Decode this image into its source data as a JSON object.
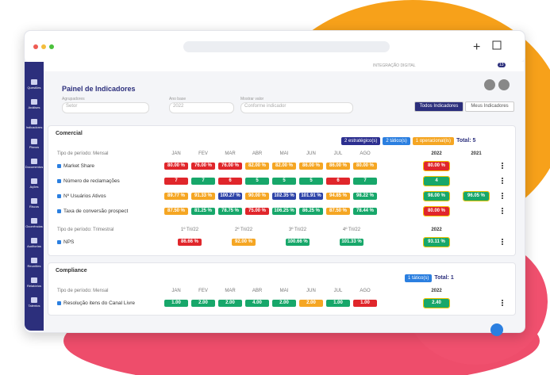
{
  "topbar": {
    "org": "INTEGRAÇÃO DIGITAL",
    "notifications": "13"
  },
  "sidebar": [
    "Questões",
    "Análises",
    "Indicadores",
    "Planos",
    "Documentos",
    "Ações",
    "Riscos",
    "Ocorrências",
    "Auditorias",
    "Reuniões",
    "Relatórios",
    "Talentos"
  ],
  "header": {
    "title": "Painel de Indicadores"
  },
  "filters": [
    {
      "label": "Agrupadores",
      "value": "Setor"
    },
    {
      "label": "Ano base",
      "value": "2022"
    },
    {
      "label": "Mostrar valor",
      "value": "Conforme indicador"
    }
  ],
  "tabs": [
    "Todos Indicadores",
    "Meus Indicadores"
  ],
  "sections": [
    {
      "title": "Comercial",
      "badges": [
        {
          "text": "2 estratégico(s)",
          "color": "#2c2f8f"
        },
        {
          "text": "2 tático(s)",
          "color": "#2b7fe0"
        },
        {
          "text": "1 operacional(is)",
          "color": "#f5a623"
        }
      ],
      "total": "Total: 5",
      "groups": [
        {
          "period": "Tipo de período: Mensal",
          "columns": [
            "JAN",
            "FEV",
            "MAR",
            "ABR",
            "MAI",
            "JUN",
            "JUL",
            "AGO"
          ],
          "year_columns": [
            "2022",
            "2021"
          ],
          "rows": [
            {
              "name": "Market Share",
              "cells": [
                "80.00 %",
                "76.00 %",
                "76.00 %",
                "82.00 %",
                "82.00 %",
                "86.00 %",
                "86.00 %",
                "80.00 %"
              ],
              "colors": [
                "#e0262b",
                "#e0262b",
                "#e0262b",
                "#f5a623",
                "#f5a623",
                "#f5a623",
                "#f5a623",
                "#f5a623"
              ],
              "years": [
                "80.00 %"
              ],
              "year_colors": [
                "#e0262b"
              ]
            },
            {
              "name": "Número de reclamações",
              "cells": [
                "7",
                "7",
                "6",
                "5",
                "5",
                "5",
                "6",
                "7"
              ],
              "colors": [
                "#e0262b",
                "#17a76a",
                "#e0262b",
                "#17a76a",
                "#17a76a",
                "#17a76a",
                "#e0262b",
                "#17a76a"
              ],
              "years": [
                "4"
              ],
              "year_colors": [
                "#17a76a"
              ]
            },
            {
              "name": "Nº Usuários Ativos",
              "cells": [
                "89.77 %",
                "91.33 %",
                "100.27 %",
                "90.00 %",
                "102.35 %",
                "101.91 %",
                "94.85 %",
                "98.22 %"
              ],
              "colors": [
                "#f5a623",
                "#f5a623",
                "#2d43a8",
                "#f5a623",
                "#2d43a8",
                "#2d43a8",
                "#f5a623",
                "#17a76a"
              ],
              "years": [
                "98.00 %",
                "96.05 %"
              ],
              "year_colors": [
                "#17a76a",
                "#17a76a"
              ]
            },
            {
              "name": "Taxa de conversão prospect",
              "cells": [
                "87.50 %",
                "81.25 %",
                "78.75 %",
                "75.00 %",
                "106.25 %",
                "86.25 %",
                "87.50 %",
                "78.44 %"
              ],
              "colors": [
                "#f5a623",
                "#17a76a",
                "#17a76a",
                "#e0262b",
                "#17a76a",
                "#17a76a",
                "#f5a623",
                "#17a76a"
              ],
              "years": [
                "80.00 %"
              ],
              "year_colors": [
                "#e0262b"
              ]
            }
          ]
        },
        {
          "period": "Tipo de período: Trimestral",
          "columns": [
            "1º Tri/22",
            "2º Tri/22",
            "3º Tri/22",
            "4º Tri/22"
          ],
          "year_columns": [
            "2022"
          ],
          "rows": [
            {
              "name": "NPS",
              "cells": [
                "86.66 %",
                "92.00 %",
                "100.66 %",
                "101.33 %"
              ],
              "colors": [
                "#e0262b",
                "#f5a623",
                "#17a76a",
                "#17a76a"
              ],
              "years": [
                "93.11 %"
              ],
              "year_colors": [
                "#17a76a"
              ]
            }
          ]
        }
      ]
    },
    {
      "title": "Compliance",
      "badges": [
        {
          "text": "1 tático(s)",
          "color": "#2b7fe0"
        }
      ],
      "total": "Total: 1",
      "groups": [
        {
          "period": "Tipo de período: Mensal",
          "columns": [
            "JAN",
            "FEV",
            "MAR",
            "ABR",
            "MAI",
            "JUN",
            "JUL",
            "AGO"
          ],
          "year_columns": [
            "2022"
          ],
          "rows": [
            {
              "name": "Resolução itens do Canal Livre",
              "cells": [
                "1.00",
                "2.00",
                "2.00",
                "4.00",
                "2.00",
                "2.00",
                "1.00",
                "1.00"
              ],
              "colors": [
                "#17a76a",
                "#17a76a",
                "#17a76a",
                "#17a76a",
                "#17a76a",
                "#f5a623",
                "#17a76a",
                "#e0262b"
              ],
              "years": [
                "2.40"
              ],
              "year_colors": [
                "#17a76a"
              ]
            }
          ]
        }
      ]
    }
  ]
}
